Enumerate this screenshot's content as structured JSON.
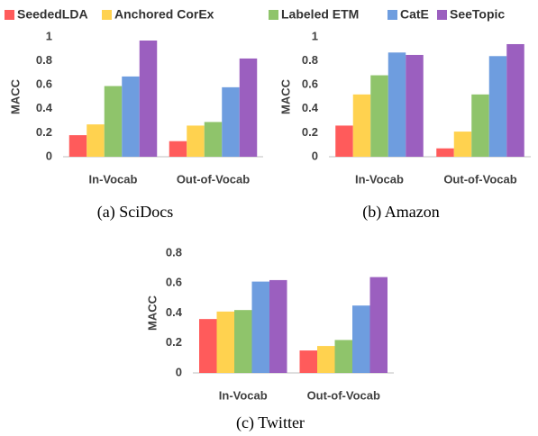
{
  "legend": [
    {
      "name": "SeededLDA",
      "color": "#ff5b5b"
    },
    {
      "name": "Anchored CorEx",
      "color": "#ffd24f"
    },
    {
      "name": "Labeled ETM",
      "color": "#8fc46b"
    },
    {
      "name": "CatE",
      "color": "#6e9ddf"
    },
    {
      "name": "SeeTopic",
      "color": "#9b5fbf"
    }
  ],
  "chart_data": [
    {
      "type": "bar",
      "caption": "(a) SciDocs",
      "ylabel": "MACC",
      "categories": [
        "In-Vocab",
        "Out-of-Vocab"
      ],
      "series": [
        {
          "values": [
            0.18,
            0.13
          ]
        },
        {
          "values": [
            0.27,
            0.26
          ]
        },
        {
          "values": [
            0.59,
            0.29
          ]
        },
        {
          "values": [
            0.67,
            0.58
          ]
        },
        {
          "values": [
            0.97,
            0.82
          ]
        }
      ],
      "ylim": [
        0,
        1
      ],
      "yticks": [
        0,
        0.2,
        0.4,
        0.6,
        0.8,
        1
      ]
    },
    {
      "type": "bar",
      "caption": "(b) Amazon",
      "ylabel": "MACC",
      "categories": [
        "In-Vocab",
        "Out-of-Vocab"
      ],
      "series": [
        {
          "values": [
            0.26,
            0.07
          ]
        },
        {
          "values": [
            0.52,
            0.21
          ]
        },
        {
          "values": [
            0.68,
            0.52
          ]
        },
        {
          "values": [
            0.87,
            0.84
          ]
        },
        {
          "values": [
            0.85,
            0.94
          ]
        }
      ],
      "ylim": [
        0,
        1
      ],
      "yticks": [
        0,
        0.2,
        0.4,
        0.6,
        0.8,
        1
      ]
    },
    {
      "type": "bar",
      "caption": "(c) Twitter",
      "ylabel": "MACC",
      "categories": [
        "In-Vocab",
        "Out-of-Vocab"
      ],
      "series": [
        {
          "values": [
            0.36,
            0.15
          ]
        },
        {
          "values": [
            0.41,
            0.18
          ]
        },
        {
          "values": [
            0.42,
            0.22
          ]
        },
        {
          "values": [
            0.61,
            0.45
          ]
        },
        {
          "values": [
            0.62,
            0.64
          ]
        }
      ],
      "ylim": [
        0,
        0.8
      ],
      "yticks": [
        0,
        0.2,
        0.4,
        0.6,
        0.8
      ]
    }
  ]
}
